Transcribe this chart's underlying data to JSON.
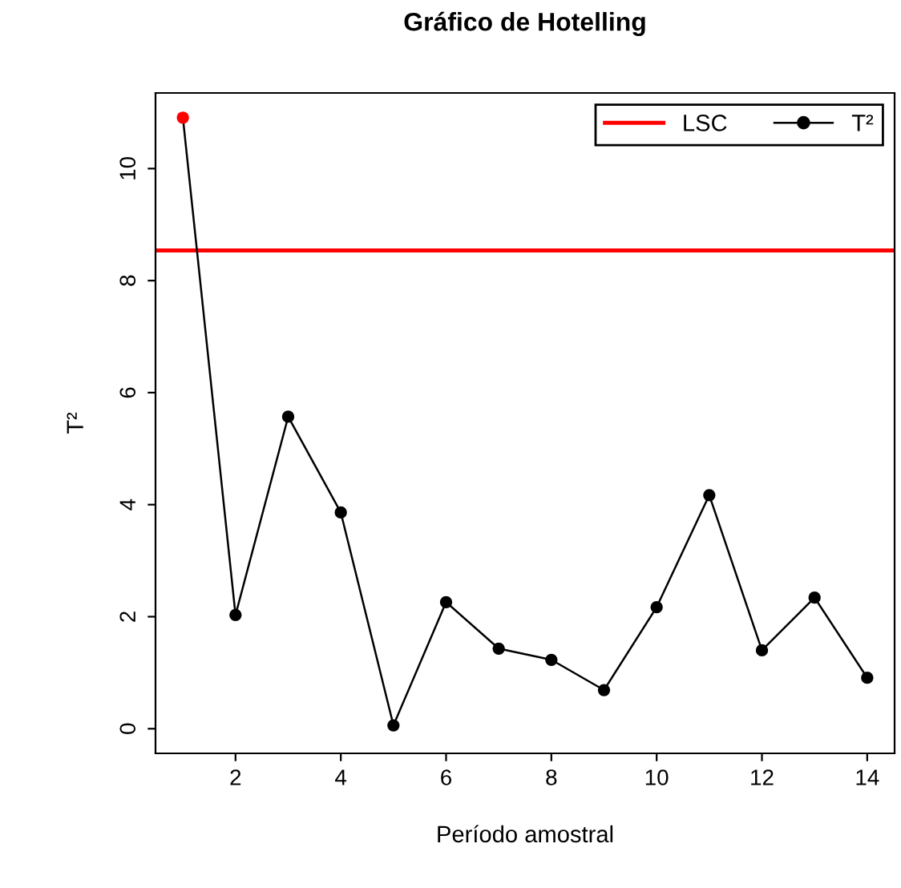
{
  "chart_data": {
    "type": "line",
    "title": "Gráfico de Hotelling",
    "xlabel": "Período amostral",
    "ylabel": "T²",
    "x": [
      1,
      2,
      3,
      4,
      5,
      6,
      7,
      8,
      9,
      10,
      11,
      12,
      13,
      14
    ],
    "series": [
      {
        "name": "T²",
        "color": "#000000",
        "colors": [
          "#ff0000",
          "#000000",
          "#000000",
          "#000000",
          "#000000",
          "#000000",
          "#000000",
          "#000000",
          "#000000",
          "#000000",
          "#000000",
          "#000000",
          "#000000",
          "#000000"
        ],
        "values": [
          10.91,
          2.03,
          5.57,
          3.86,
          0.06,
          2.26,
          1.43,
          1.23,
          0.69,
          2.17,
          4.17,
          1.4,
          2.34,
          0.91
        ]
      }
    ],
    "ref_lines": [
      {
        "axis": "y",
        "value": 8.54,
        "label": "LSC",
        "color": "#ff0000"
      }
    ],
    "xlim": [
      0.48,
      14.52
    ],
    "xticks": [
      2,
      4,
      6,
      8,
      10,
      12,
      14
    ],
    "ylim": [
      -0.44,
      11.35
    ],
    "yticks": [
      0,
      2,
      4,
      6,
      8,
      10
    ],
    "marker": "circle",
    "line_style": "solid",
    "grid": false,
    "legend": "top right"
  }
}
